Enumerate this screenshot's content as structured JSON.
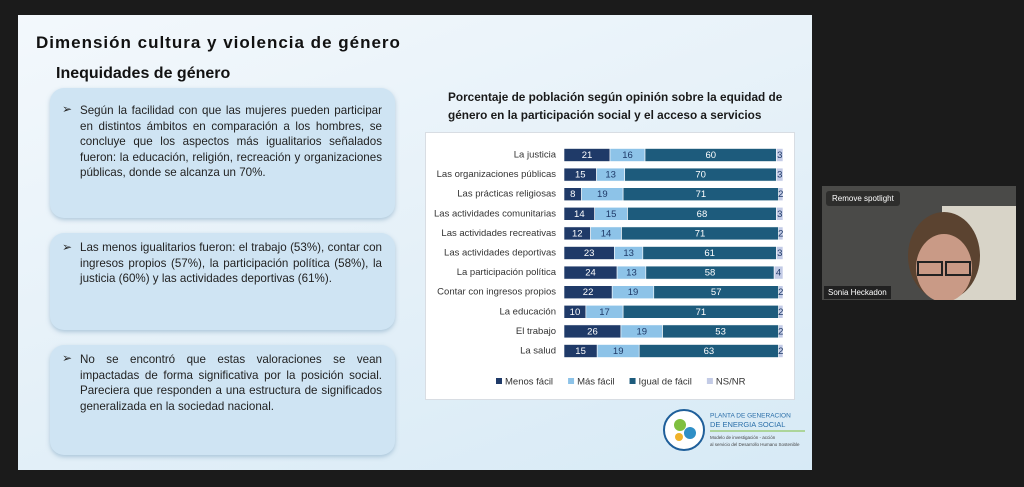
{
  "slide": {
    "title": "Dimensión cultura y violencia de género",
    "subtitle": "Inequidades de género",
    "bullet_marker": "➢",
    "bullets": [
      "Según la facilidad con que las mujeres pueden participar en distintos ámbitos en comparación a los hombres, se concluye que los aspectos más igualitarios señalados fueron:  la educación, religión, recreación y organizaciones públicas, donde se alcanza un 70%.",
      "Las menos igualitarios fueron: el trabajo (53%), contar con ingresos propios (57%), la participación política (58%), la justicia (60%) y las actividades deportivas (61%).",
      "No se encontró que estas valoraciones se vean impactadas de forma significativa por la posición social. Pareciera que responden a una estructura de significados generalizada en la sociedad nacional."
    ],
    "logo": {
      "name_line1": "PLANTA DE GENERACION",
      "name_line2": "DE ENERGIA SOCIAL",
      "tagline_line1": "Modelo de investigación - acción",
      "tagline_line2": "al servicio del Desarrollo Humano Sostenible"
    }
  },
  "video": {
    "button": "Remove spotlight",
    "participant": "Sonia Heckadon"
  },
  "chart_data": {
    "type": "stacked-bar-horizontal",
    "title": "Porcentaje de población según opinión sobre  la equidad de género en la participación social y el acceso a servicios",
    "categories": [
      "La justicia",
      "Las organizaciones públicas",
      "Las prácticas religiosas",
      "Las actividades comunitarias",
      "Las actividades recreativas",
      "Las actividades deportivas",
      "La participación política",
      "Contar con ingresos propios",
      "La educación",
      "El trabajo",
      "La salud"
    ],
    "series": [
      {
        "name": "Menos fácil",
        "color": "#1f3a68",
        "label_color": "#ffffff",
        "values": [
          21,
          15,
          8,
          14,
          12,
          23,
          24,
          22,
          10,
          26,
          15
        ]
      },
      {
        "name": "Más fácil",
        "color": "#8dc3e8",
        "label_color": "#1f3a68",
        "values": [
          16,
          13,
          19,
          15,
          14,
          13,
          13,
          19,
          17,
          19,
          19
        ]
      },
      {
        "name": "Igual de fácil",
        "color": "#1d5b7c",
        "label_color": "#ffffff",
        "values": [
          60,
          70,
          71,
          68,
          71,
          61,
          58,
          57,
          71,
          53,
          63
        ]
      },
      {
        "name": "NS/NR",
        "color": "#c3cbe6",
        "label_color": "#1f3a68",
        "values": [
          3,
          3,
          2,
          3,
          2,
          3,
          4,
          2,
          2,
          2,
          2
        ]
      }
    ],
    "legend": "bottom"
  }
}
